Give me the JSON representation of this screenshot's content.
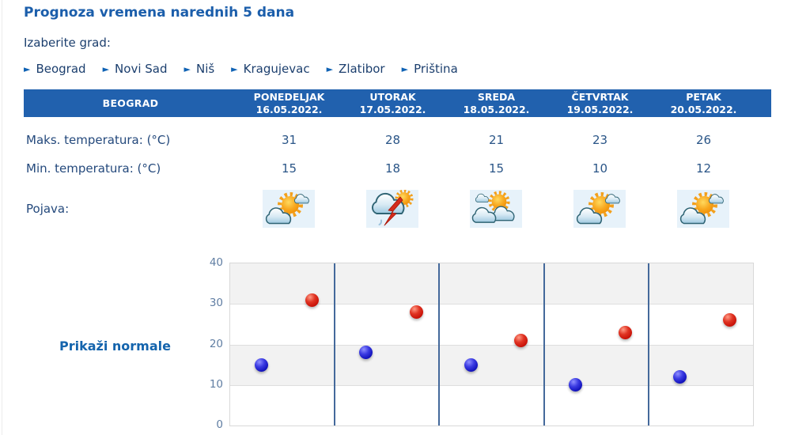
{
  "page": {
    "title": "Prognoza vremena narednih 5 dana",
    "choose_city_label": "Izaberite grad:"
  },
  "cities": [
    {
      "label": "Beograd"
    },
    {
      "label": "Novi Sad"
    },
    {
      "label": "Niš"
    },
    {
      "label": "Kragujevac"
    },
    {
      "label": "Zlatibor"
    },
    {
      "label": "Priština"
    }
  ],
  "table": {
    "city_header": "BEOGRAD",
    "max_row_label": "Maks. temperatura: (°C)",
    "min_row_label": "Min. temperatura: (°C)",
    "pojava_row_label": "Pojava:",
    "days": [
      {
        "name": "PONEDELJAK",
        "date": "16.05.2022.",
        "max": "31",
        "min": "15",
        "icon": "partly-cloudy"
      },
      {
        "name": "UTORAK",
        "date": "17.05.2022.",
        "max": "28",
        "min": "18",
        "icon": "thunderstorm"
      },
      {
        "name": "SREDA",
        "date": "18.05.2022.",
        "max": "21",
        "min": "15",
        "icon": "mostly-cloudy"
      },
      {
        "name": "ČETVRTAK",
        "date": "19.05.2022.",
        "max": "23",
        "min": "10",
        "icon": "partly-cloudy"
      },
      {
        "name": "PETAK",
        "date": "20.05.2022.",
        "max": "26",
        "min": "12",
        "icon": "partly-cloudy"
      }
    ]
  },
  "chart": {
    "normals_button_label": "Prikaži normale"
  },
  "chart_data": {
    "type": "scatter",
    "categories": [
      "PONEDELJAK 16.05.2022.",
      "UTORAK 17.05.2022.",
      "SREDA 18.05.2022.",
      "ČETVRTAK 19.05.2022.",
      "PETAK 20.05.2022."
    ],
    "series": [
      {
        "name": "Maks. temperatura (°C)",
        "color": "#c91309",
        "values": [
          31,
          28,
          21,
          23,
          26
        ]
      },
      {
        "name": "Min. temperatura (°C)",
        "color": "#1414bd",
        "values": [
          15,
          18,
          15,
          10,
          12
        ]
      }
    ],
    "ylim": [
      0,
      40
    ],
    "yticks": [
      0,
      10,
      20,
      30,
      40
    ],
    "grid": true,
    "legend": "none",
    "banded_background": true
  },
  "colors": {
    "title_blue": "#1b5eab",
    "header_bg": "#2161ae",
    "link_navy": "#1c3f6e",
    "accent_blue": "#1464ad",
    "separator_blue": "#44699b",
    "point_red": "#c91309",
    "point_blue": "#1414bd"
  }
}
